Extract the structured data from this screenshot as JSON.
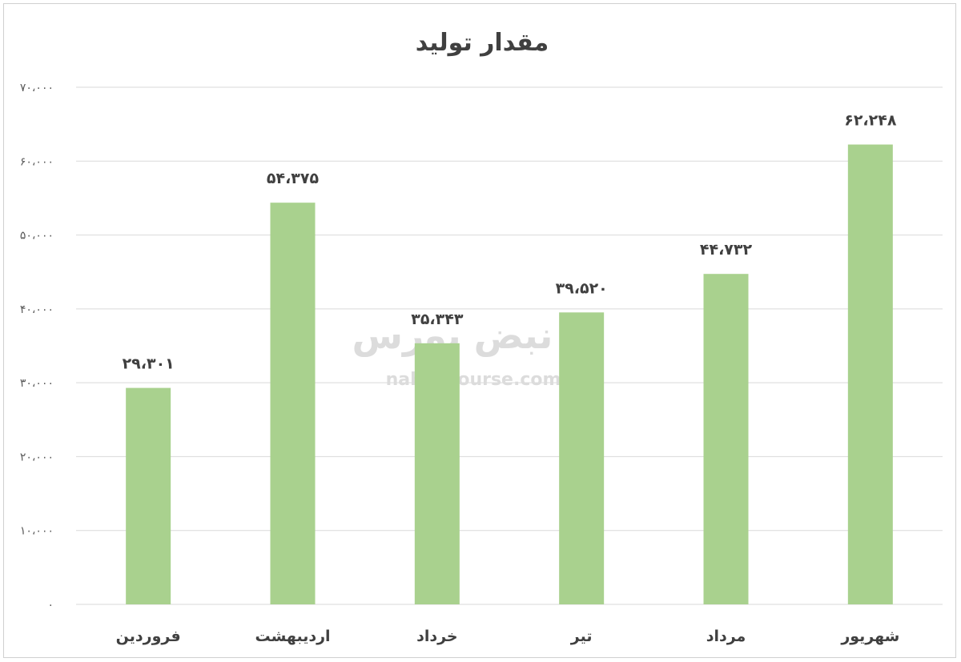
{
  "chart_data": {
    "type": "bar",
    "title": "مقدار تولید",
    "categories": [
      "فروردین",
      "اردیبهشت",
      "خرداد",
      "تیر",
      "مرداد",
      "شهریور"
    ],
    "values": [
      29301,
      54375,
      35343,
      39520,
      44732,
      62248
    ],
    "value_labels": [
      "۲۹،۳۰۱",
      "۵۴،۳۷۵",
      "۳۵،۳۴۳",
      "۳۹،۵۲۰",
      "۴۴،۷۳۲",
      "۶۲،۲۴۸"
    ],
    "ylim": [
      0,
      70000
    ],
    "yticks": [
      0,
      10000,
      20000,
      30000,
      40000,
      50000,
      60000,
      70000
    ],
    "ytick_labels": [
      "۰",
      "۱۰،۰۰۰",
      "۲۰،۰۰۰",
      "۳۰،۰۰۰",
      "۴۰،۰۰۰",
      "۵۰،۰۰۰",
      "۶۰،۰۰۰",
      "۷۰،۰۰۰"
    ],
    "xlabel": "",
    "ylabel": "",
    "grid": true,
    "legend": "none",
    "bar_color": "#a9d18e"
  },
  "watermark": {
    "logo_text": "نبض بورس",
    "url": "nabzebourse.com"
  }
}
